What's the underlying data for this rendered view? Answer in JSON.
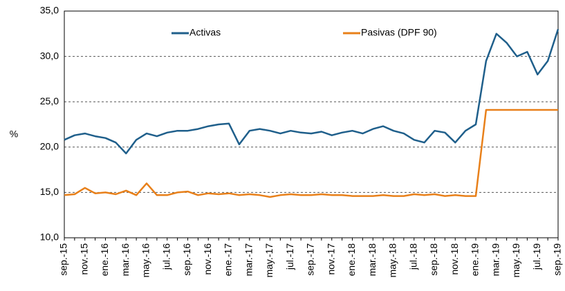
{
  "chart_data": {
    "type": "line",
    "ylabel": "%",
    "categories": [
      "sep.-15",
      null,
      "nov.-15",
      null,
      "ene.-16",
      null,
      "mar.-16",
      null,
      "may.-16",
      null,
      "jul.-16",
      null,
      "sep.-16",
      null,
      "nov.-16",
      null,
      "ene.-17",
      null,
      "mar.-17",
      null,
      "may.-17",
      null,
      "jul.-17",
      null,
      "sep.-17",
      null,
      "nov.-17",
      null,
      "ene.-18",
      null,
      "mar.-18",
      null,
      "may.-18",
      null,
      "jul.-18",
      null,
      "sep.-18",
      null,
      "nov.-18",
      null,
      "ene.-19",
      null,
      "mar.-19",
      null,
      "may.-19",
      null,
      "jul.-19",
      null,
      "sep.-19"
    ],
    "series": [
      {
        "name": "Activas",
        "color": "#1f5f8b",
        "values": [
          20.8,
          21.3,
          21.5,
          21.2,
          21.0,
          20.5,
          19.3,
          20.8,
          21.5,
          21.2,
          21.6,
          21.8,
          21.8,
          22.0,
          22.3,
          22.5,
          22.6,
          20.3,
          21.8,
          22.0,
          21.8,
          21.5,
          21.8,
          21.6,
          21.5,
          21.7,
          21.3,
          21.6,
          21.8,
          21.5,
          22.0,
          22.3,
          21.8,
          21.5,
          20.8,
          20.5,
          21.8,
          21.6,
          20.5,
          21.8,
          22.5,
          29.5,
          32.5,
          31.5,
          30.0,
          30.5,
          28.0,
          29.5,
          33.0
        ]
      },
      {
        "name": "Pasivas (DPF 90)",
        "color": "#e8801a",
        "values": [
          14.7,
          14.8,
          15.5,
          14.9,
          15.0,
          14.8,
          15.2,
          14.7,
          16.0,
          14.7,
          14.7,
          15.0,
          15.1,
          14.7,
          14.9,
          14.8,
          14.9,
          14.7,
          14.8,
          14.7,
          14.5,
          14.7,
          14.8,
          14.7,
          14.7,
          14.8,
          14.7,
          14.7,
          14.6,
          14.6,
          14.6,
          14.7,
          14.6,
          14.6,
          14.8,
          14.7,
          14.8,
          14.6,
          14.7,
          14.6,
          14.6,
          24.1,
          24.1,
          24.1,
          24.1,
          24.1,
          24.1,
          24.1,
          24.1
        ]
      }
    ],
    "ylim": [
      10,
      35
    ],
    "yticks": [
      {
        "value": 10,
        "label": "10,0"
      },
      {
        "value": 15,
        "label": "15,0"
      },
      {
        "value": 20,
        "label": "20,0"
      },
      {
        "value": 25,
        "label": "25,0"
      },
      {
        "value": 30,
        "label": "30,0"
      },
      {
        "value": 35,
        "label": "35,0"
      }
    ],
    "grid": true
  }
}
